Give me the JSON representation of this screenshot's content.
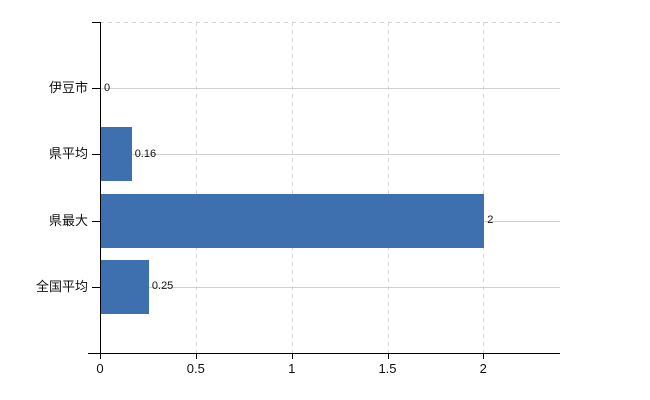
{
  "chart_data": {
    "type": "bar",
    "orientation": "horizontal",
    "title": "",
    "xlabel": "",
    "ylabel": "",
    "categories": [
      "伊豆市",
      "県平均",
      "県最大",
      "全国平均"
    ],
    "values": [
      0,
      0.16,
      2,
      0.25
    ],
    "data_labels": [
      "0",
      "0.16",
      "2",
      "0.25"
    ],
    "xticks": [
      0,
      0.5,
      1,
      1.5,
      2
    ],
    "xtick_labels": [
      "0",
      "0.5",
      "1",
      "1.5",
      "2"
    ],
    "xlim": [
      0,
      2.4
    ],
    "grid": true,
    "gridline_style": {
      "horizontal": "solid",
      "vertical": "dashed",
      "top_border": "dashed"
    },
    "legend": "none",
    "colors": {
      "bar": "#3e6fae",
      "horizontal_gridline": "#ccd4cc",
      "vertical_gridline": "#d9d2d9",
      "axis": "#000000",
      "text": "#111111"
    }
  }
}
